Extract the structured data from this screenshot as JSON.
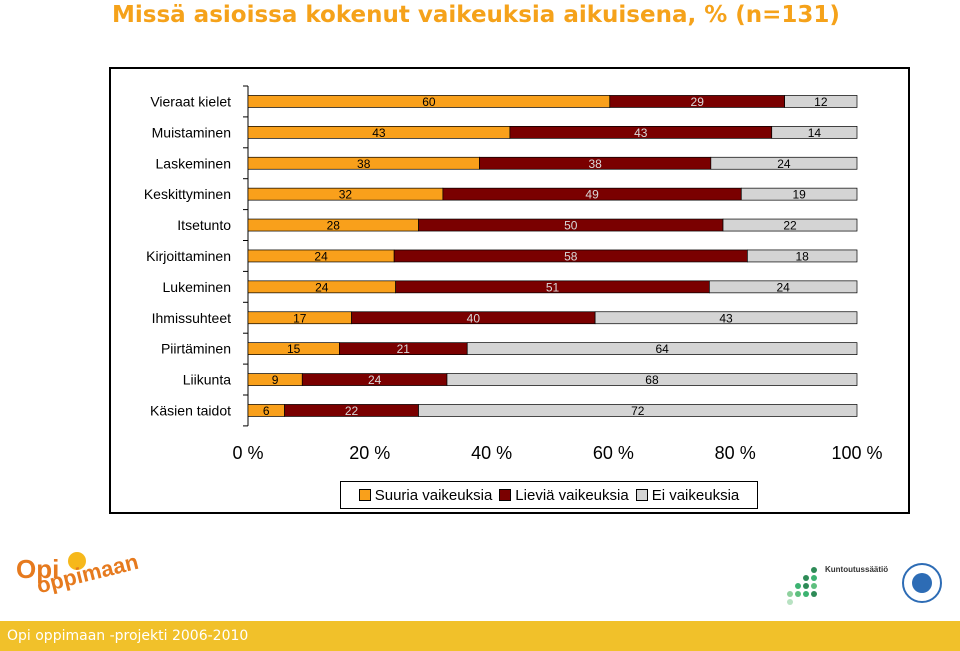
{
  "slide": {
    "title": "Missä asioissa kokenut vaikeuksia aikuisena, % (n=131)",
    "footer": "Opi oppimaan -projekti 2006-2010"
  },
  "colors": {
    "title": "#f5a21a",
    "footer_bar": "#f1c12a",
    "series": [
      "#f9a01b",
      "#7a0000",
      "#d4d4d4"
    ]
  },
  "logos": {
    "opi_oppimaan": {
      "line1": "Opi",
      "line2": "oppimaan"
    },
    "kuntoutussaatio": {
      "name": "Kuntoutussäätiö"
    },
    "seal": {
      "text": "RAHA-AUTOMAATTIYHDISTYS"
    }
  },
  "chart_data": {
    "type": "bar",
    "orientation": "horizontal",
    "stacked": "percent",
    "categories": [
      "Vieraat kielet",
      "Muistaminen",
      "Laskeminen",
      "Keskittyminen",
      "Itsetunto",
      "Kirjoittaminen",
      "Lukeminen",
      "Ihmissuhteet",
      "Piirtäminen",
      "Liikunta",
      "Käsien taidot"
    ],
    "series": [
      {
        "name": "Suuria vaikeuksia",
        "values": [
          60,
          43,
          38,
          32,
          28,
          24,
          24,
          17,
          15,
          9,
          6
        ]
      },
      {
        "name": "Lieviä vaikeuksia",
        "values": [
          29,
          43,
          38,
          49,
          50,
          58,
          51,
          40,
          21,
          24,
          22
        ]
      },
      {
        "name": "Ei vaikeuksia",
        "values": [
          12,
          14,
          24,
          19,
          22,
          18,
          24,
          43,
          64,
          68,
          72
        ]
      }
    ],
    "x_ticks": [
      "0 %",
      "20 %",
      "40 %",
      "60 %",
      "80 %",
      "100 %"
    ],
    "xlim": [
      0,
      100
    ],
    "grid": false,
    "legend": "bottom",
    "data_labels": true
  }
}
